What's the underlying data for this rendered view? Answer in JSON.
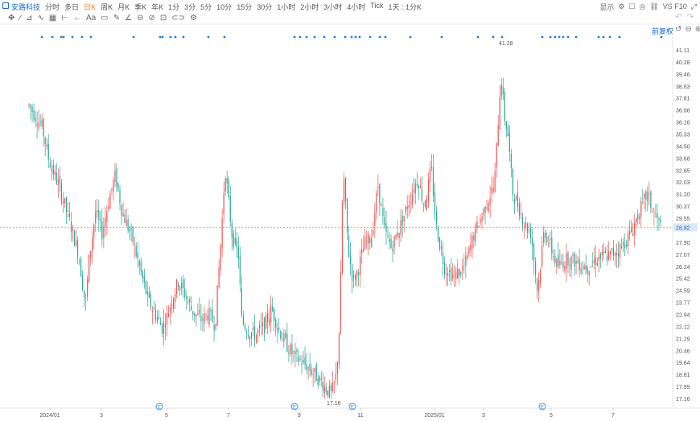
{
  "toolbar": {
    "stock_name": "安路科技",
    "periods": [
      "分时",
      "多日",
      "日K",
      "周K",
      "月K",
      "季K",
      "年K",
      "1分",
      "3分",
      "5分",
      "10分",
      "15分",
      "30分",
      "1小时",
      "2小时",
      "3小时",
      "4小时",
      "Tick",
      "1天 : 1分K"
    ],
    "active_period": "日K",
    "right_display": "显示",
    "right_code": "VS F10"
  },
  "tools": {
    "icons": [
      "crosshair-icon",
      "line-tool-icon",
      "channel-tool-icon",
      "wave-tool-icon",
      "fib-tool-icon",
      "measure-tool-icon",
      "arrow-tool-icon",
      "text-tool-icon",
      "comment-icon",
      "brush-icon",
      "angle-icon",
      "magnet-icon",
      "lock-icon",
      "eye-icon",
      "trash-icon",
      "link-icon",
      "settings-icon"
    ],
    "text_tool_label": "Aa",
    "fq_label": "前复权"
  },
  "chart_data": {
    "type": "candlestick",
    "y_ticks": [
      "41.11",
      "40.28",
      "39.46",
      "38.63",
      "37.81",
      "36.98",
      "36.16",
      "35.33",
      "34.50",
      "33.68",
      "32.85",
      "32.03",
      "31.20",
      "30.37",
      "29.55",
      "28.92",
      "27.90",
      "27.07",
      "26.24",
      "25.42",
      "24.59",
      "23.77",
      "22.94",
      "22.12",
      "21.29",
      "20.46",
      "19.64",
      "18.81",
      "17.99",
      "17.16"
    ],
    "ylim": [
      16.8,
      41.5
    ],
    "x_ticks": [
      "2024/01",
      "3",
      "5",
      "7",
      "9",
      "11",
      "2025/01",
      "3",
      "5",
      "7"
    ],
    "current_price": "28.92",
    "max_label": "41.28",
    "min_label": "17.16",
    "up_color": "#ef5350",
    "down_color": "#26a69a",
    "event_markers": [
      "E",
      "E",
      "E",
      "E"
    ],
    "close_path": [
      [
        0,
        37.3
      ],
      [
        8,
        35.8
      ],
      [
        12,
        33.5
      ],
      [
        18,
        31.8
      ],
      [
        24,
        29.5
      ],
      [
        30,
        27.0
      ],
      [
        34,
        23.5
      ],
      [
        36,
        26.5
      ],
      [
        40,
        30.0
      ],
      [
        44,
        28.5
      ],
      [
        48,
        30.8
      ],
      [
        52,
        32.5
      ],
      [
        56,
        30.0
      ],
      [
        62,
        28.2
      ],
      [
        68,
        25.5
      ],
      [
        72,
        23.8
      ],
      [
        76,
        23.0
      ],
      [
        80,
        22.0
      ],
      [
        83,
        22.8
      ],
      [
        86,
        24.0
      ],
      [
        90,
        25.2
      ],
      [
        94,
        24.3
      ],
      [
        98,
        23.2
      ],
      [
        104,
        22.5
      ],
      [
        108,
        23.0
      ],
      [
        112,
        22.2
      ],
      [
        116,
        29.0
      ],
      [
        118,
        33.0
      ],
      [
        122,
        28.5
      ],
      [
        126,
        27.0
      ],
      [
        128,
        22.5
      ],
      [
        132,
        21.8
      ],
      [
        136,
        21.5
      ],
      [
        142,
        22.2
      ],
      [
        146,
        23.3
      ],
      [
        150,
        22.0
      ],
      [
        154,
        21.0
      ],
      [
        160,
        20.0
      ],
      [
        166,
        19.5
      ],
      [
        172,
        18.8
      ],
      [
        178,
        18.0
      ],
      [
        182,
        17.4
      ],
      [
        185,
        18.8
      ],
      [
        187,
        22.5
      ],
      [
        189,
        33.0
      ],
      [
        192,
        27.5
      ],
      [
        195,
        25.2
      ],
      [
        198,
        26.0
      ],
      [
        202,
        27.8
      ],
      [
        206,
        28.2
      ],
      [
        210,
        31.8
      ],
      [
        214,
        28.6
      ],
      [
        218,
        27.5
      ],
      [
        224,
        29.2
      ],
      [
        230,
        31.2
      ],
      [
        234,
        32.3
      ],
      [
        238,
        30.3
      ],
      [
        242,
        33.0
      ],
      [
        245,
        29.0
      ],
      [
        250,
        26.2
      ],
      [
        256,
        25.5
      ],
      [
        262,
        26.2
      ],
      [
        268,
        28.5
      ],
      [
        272,
        29.6
      ],
      [
        276,
        30.8
      ],
      [
        280,
        31.8
      ],
      [
        284,
        39.5
      ],
      [
        286,
        36.5
      ],
      [
        288,
        35.5
      ],
      [
        291,
        31.3
      ],
      [
        294,
        30.5
      ],
      [
        298,
        29.2
      ],
      [
        302,
        28.5
      ],
      [
        306,
        24.5
      ],
      [
        310,
        28.8
      ],
      [
        314,
        27.5
      ],
      [
        318,
        26.2
      ],
      [
        324,
        26.8
      ],
      [
        330,
        26.5
      ],
      [
        336,
        26.2
      ],
      [
        342,
        26.8
      ],
      [
        350,
        27.0
      ],
      [
        356,
        27.5
      ],
      [
        362,
        28.5
      ],
      [
        368,
        30.2
      ],
      [
        372,
        31.2
      ],
      [
        376,
        29.8
      ],
      [
        380,
        29.0
      ]
    ],
    "x_span": [
      0,
      380
    ],
    "marker_dots": [
      4,
      14,
      26,
      28,
      38,
      50,
      62,
      114,
      146,
      150,
      160,
      166,
      178,
      204,
      226,
      312,
      316,
      322,
      330,
      340,
      348,
      356,
      364,
      370,
      378,
      386,
      392,
      396,
      406,
      420,
      434,
      446,
      452,
      470,
      478,
      490,
      500,
      504,
      510,
      516,
      522,
      528,
      538,
      550,
      574,
      578,
      586,
      594,
      602
    ]
  }
}
